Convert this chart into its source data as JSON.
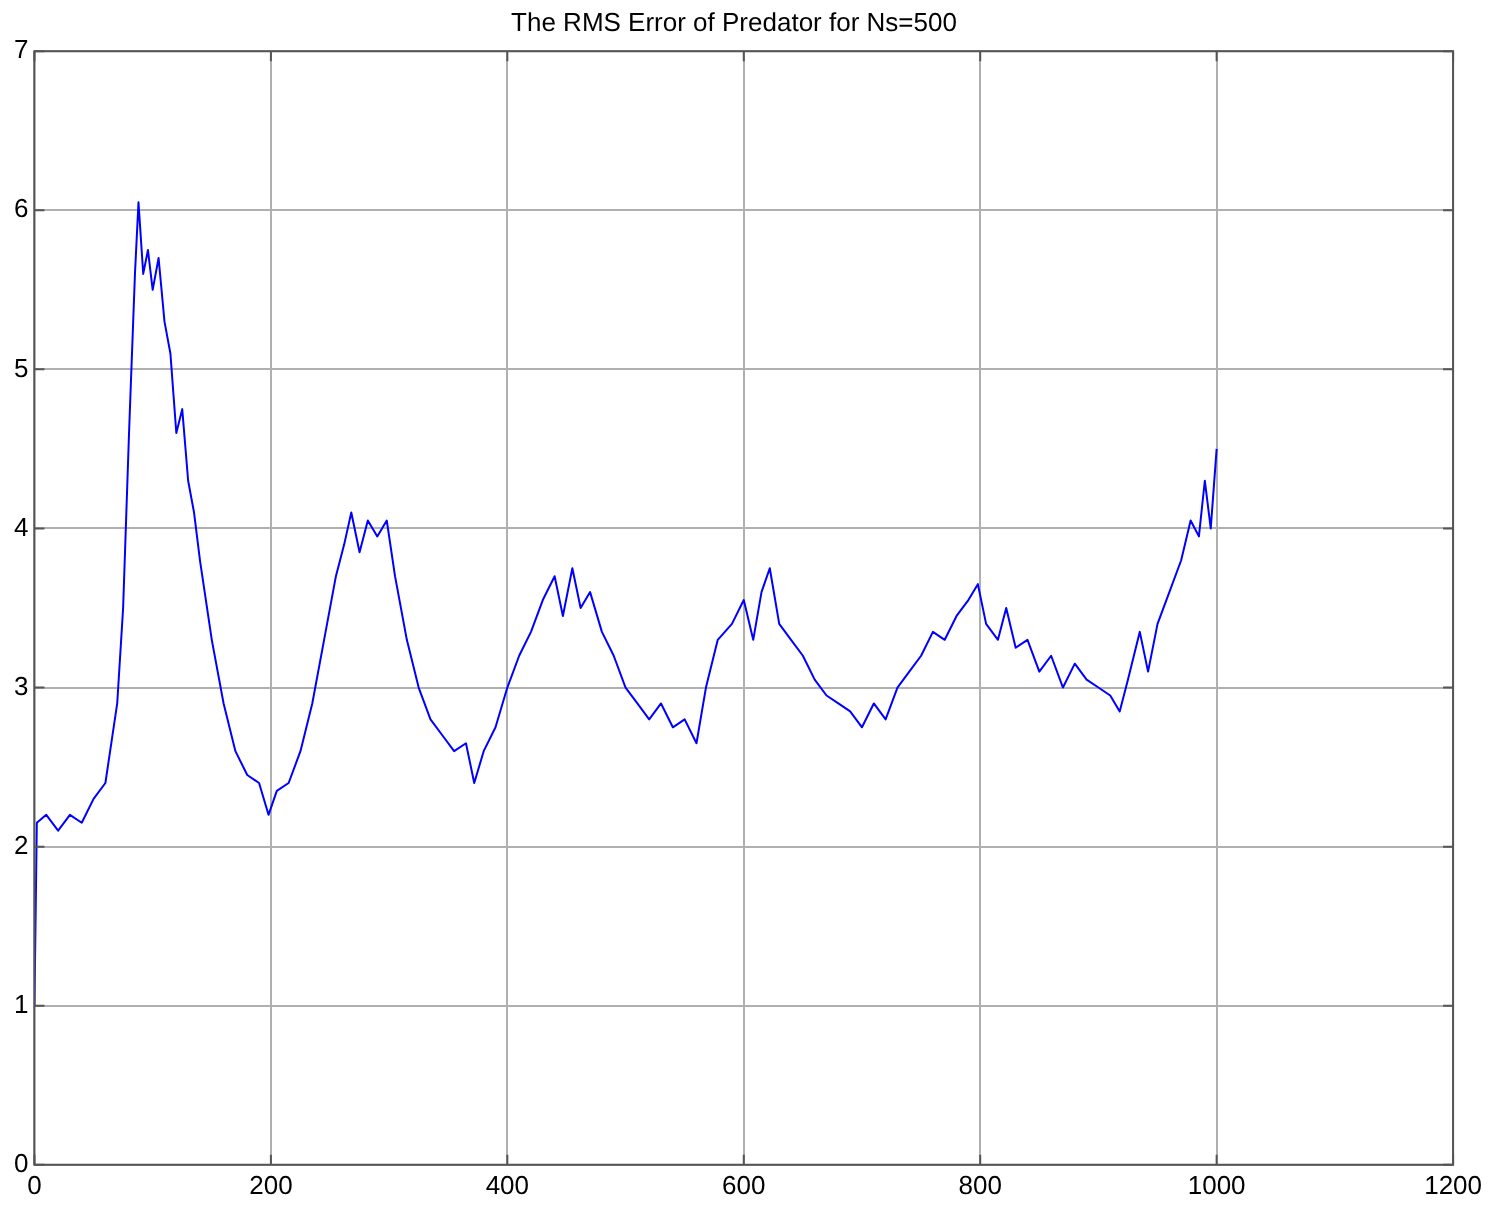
{
  "chart_data": {
    "type": "line",
    "title": "The RMS Error of Predator for Ns=500",
    "x": [
      0,
      2,
      10,
      20,
      30,
      40,
      50,
      60,
      70,
      75,
      80,
      85,
      88,
      92,
      96,
      100,
      105,
      110,
      115,
      120,
      125,
      130,
      135,
      140,
      150,
      160,
      170,
      180,
      190,
      198,
      205,
      215,
      225,
      235,
      245,
      255,
      262,
      268,
      275,
      282,
      290,
      298,
      305,
      315,
      325,
      335,
      345,
      355,
      365,
      372,
      380,
      390,
      400,
      410,
      420,
      430,
      440,
      447,
      455,
      462,
      470,
      480,
      490,
      500,
      510,
      520,
      530,
      540,
      550,
      560,
      568,
      578,
      590,
      600,
      608,
      615,
      622,
      630,
      640,
      650,
      660,
      670,
      680,
      690,
      700,
      710,
      720,
      730,
      740,
      750,
      760,
      770,
      780,
      790,
      798,
      805,
      815,
      822,
      830,
      840,
      850,
      860,
      870,
      880,
      890,
      900,
      910,
      918,
      925,
      935,
      942,
      950,
      960,
      970,
      978,
      985,
      990,
      995,
      1000
    ],
    "series": [
      {
        "color": "#0000ff",
        "values": [
          1.0,
          2.15,
          2.2,
          2.1,
          2.2,
          2.15,
          2.3,
          2.4,
          2.9,
          3.5,
          4.6,
          5.6,
          6.05,
          5.6,
          5.75,
          5.5,
          5.7,
          5.3,
          5.1,
          4.6,
          4.75,
          4.3,
          4.1,
          3.8,
          3.3,
          2.9,
          2.6,
          2.45,
          2.4,
          2.2,
          2.35,
          2.4,
          2.6,
          2.9,
          3.3,
          3.7,
          3.9,
          4.1,
          3.85,
          4.05,
          3.95,
          4.05,
          3.7,
          3.3,
          3.0,
          2.8,
          2.7,
          2.6,
          2.65,
          2.4,
          2.6,
          2.75,
          3.0,
          3.2,
          3.35,
          3.55,
          3.7,
          3.45,
          3.75,
          3.5,
          3.6,
          3.35,
          3.2,
          3.0,
          2.9,
          2.8,
          2.9,
          2.75,
          2.8,
          2.65,
          3.0,
          3.3,
          3.4,
          3.55,
          3.3,
          3.6,
          3.75,
          3.4,
          3.3,
          3.2,
          3.05,
          2.95,
          2.9,
          2.85,
          2.75,
          2.9,
          2.8,
          3.0,
          3.1,
          3.2,
          3.35,
          3.3,
          3.45,
          3.55,
          3.65,
          3.4,
          3.3,
          3.5,
          3.25,
          3.3,
          3.1,
          3.2,
          3.0,
          3.15,
          3.05,
          3.0,
          2.95,
          2.85,
          3.05,
          3.35,
          3.1,
          3.4,
          3.6,
          3.8,
          4.05,
          3.95,
          4.3,
          4.0,
          4.5
        ]
      }
    ],
    "xlim": [
      0,
      1200
    ],
    "xticks": [
      0,
      200,
      400,
      600,
      800,
      1000,
      1200
    ],
    "ylim": [
      0,
      7
    ],
    "yticks": [
      0,
      1,
      2,
      3,
      4,
      5,
      6,
      7
    ],
    "grid": true,
    "legend": false,
    "marker": "none",
    "line_style": "solid"
  }
}
